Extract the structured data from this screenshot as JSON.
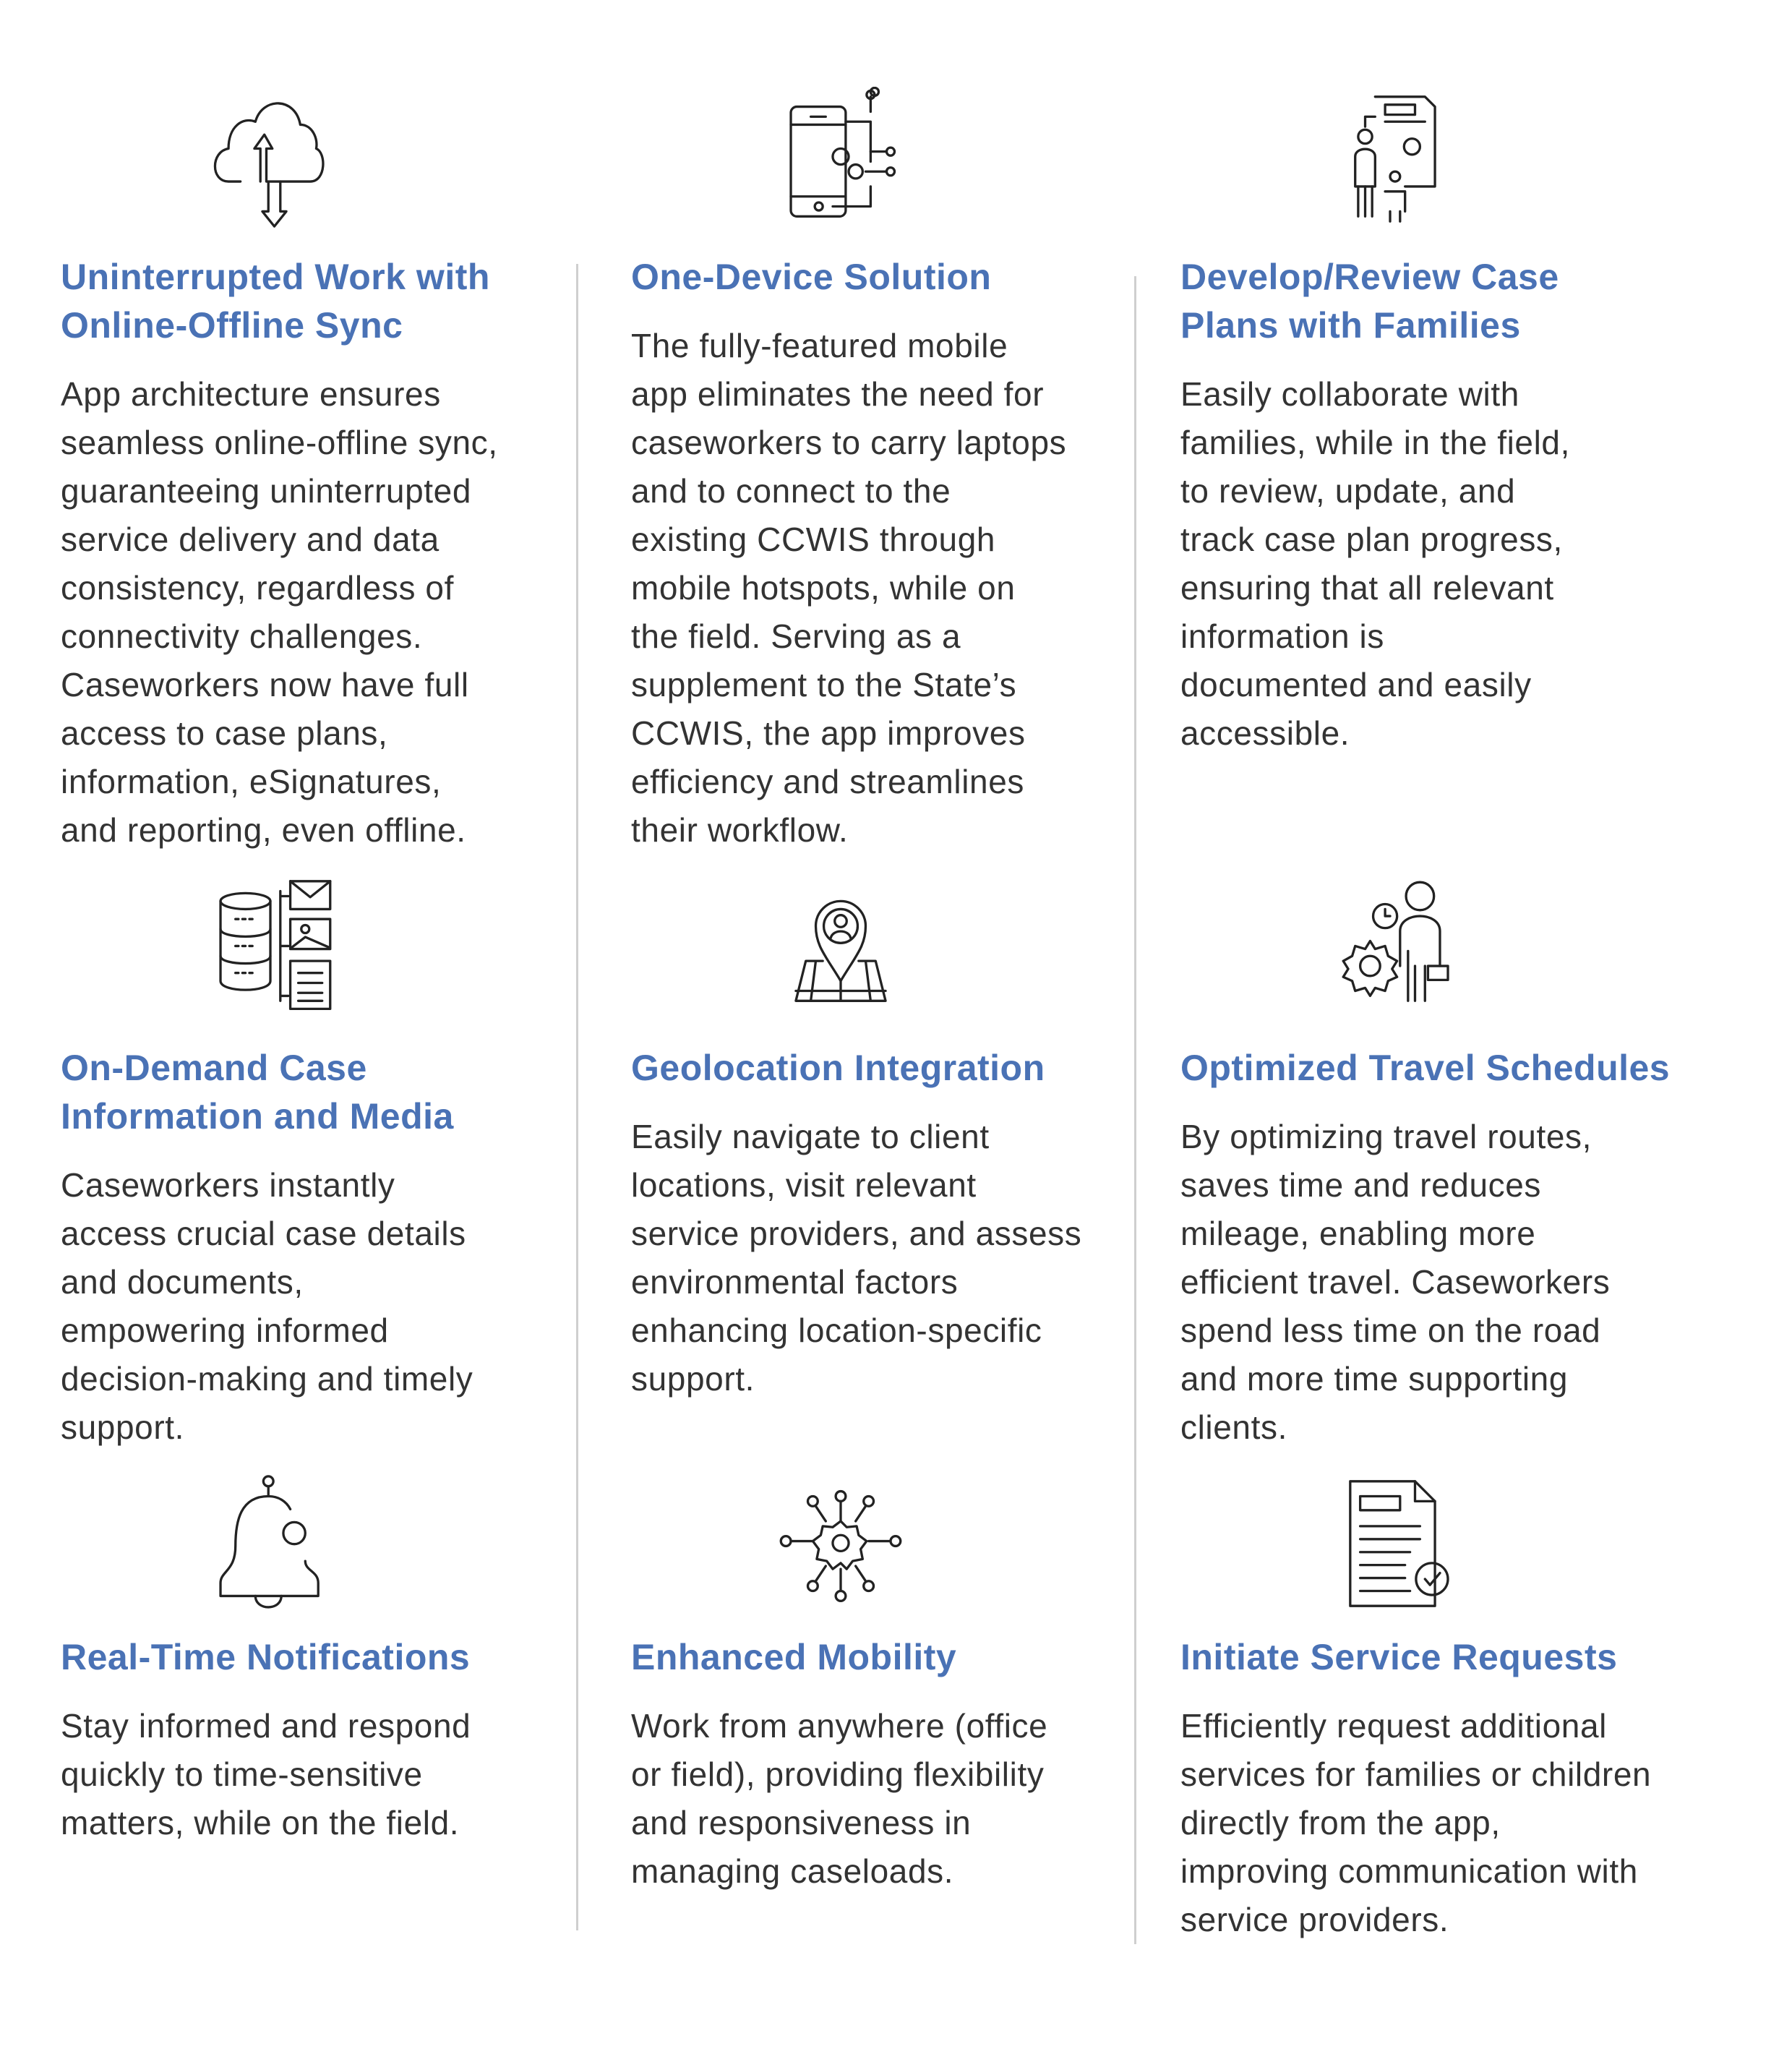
{
  "accent_color": "#4a72b5",
  "cards": [
    {
      "icon": "cloud-sync-icon",
      "title": [
        "Uninterrupted Work with",
        "Online-Offline Sync"
      ],
      "body": [
        "App architecture ensures",
        "seamless online-offline sync,",
        "guaranteeing uninterrupted",
        "service delivery and data",
        "consistency, regardless of",
        "connectivity challenges.",
        "Caseworkers now have full",
        "access to case plans,",
        "information, eSignatures,",
        "and reporting, even offline."
      ]
    },
    {
      "icon": "mobile-device-gear-icon",
      "title": [
        "One-Device Solution"
      ],
      "body": [
        "The fully-featured mobile",
        "app eliminates the need for",
        "caseworkers to carry laptops",
        "and to connect to the",
        "existing CCWIS through",
        "mobile hotspots, while on",
        "the field. Serving as a",
        "supplement to the State’s",
        "CCWIS, the app improves",
        "efficiency and streamlines",
        "their workflow."
      ]
    },
    {
      "icon": "family-case-plan-icon",
      "title": [
        "Develop/Review Case",
        "Plans with Families"
      ],
      "body": [
        "Easily collaborate with",
        "families, while in the field,",
        "to review, update, and",
        "track case plan progress,",
        "ensuring that all relevant",
        "information is",
        "documented and easily",
        "accessible."
      ]
    },
    {
      "icon": "database-media-icon",
      "title": [
        "On-Demand Case",
        "Information and Media"
      ],
      "body": [
        "Caseworkers instantly",
        "access crucial case details",
        "and documents,",
        "empowering informed",
        "decision-making and timely",
        "support."
      ]
    },
    {
      "icon": "map-pin-icon",
      "title": [
        "Geolocation Integration"
      ],
      "body": [
        "Easily navigate to client",
        "locations, visit relevant",
        "service providers, and assess",
        "environmental factors",
        "enhancing location-specific",
        "support."
      ]
    },
    {
      "icon": "person-clock-gear-icon",
      "title": [
        "Optimized Travel Schedules"
      ],
      "body": [
        "By optimizing travel routes,",
        "saves time and reduces",
        "mileage, enabling more",
        "efficient travel. Caseworkers",
        "spend less time on the road",
        "and more time supporting",
        "clients."
      ]
    },
    {
      "icon": "bell-icon",
      "title": [
        "Real-Time Notifications"
      ],
      "body": [
        "Stay informed and respond",
        "quickly to time-sensitive",
        "matters, while on the field."
      ]
    },
    {
      "icon": "gear-network-icon",
      "title": [
        "Enhanced Mobility"
      ],
      "body": [
        "Work from anywhere (office",
        "or field), providing flexibility",
        "and responsiveness in",
        "managing caseloads."
      ]
    },
    {
      "icon": "document-check-icon",
      "title": [
        "Initiate Service Requests"
      ],
      "body": [
        "Efficiently request additional",
        "services for families or children",
        "directly from the app,",
        "improving communication with",
        "service providers."
      ]
    }
  ]
}
